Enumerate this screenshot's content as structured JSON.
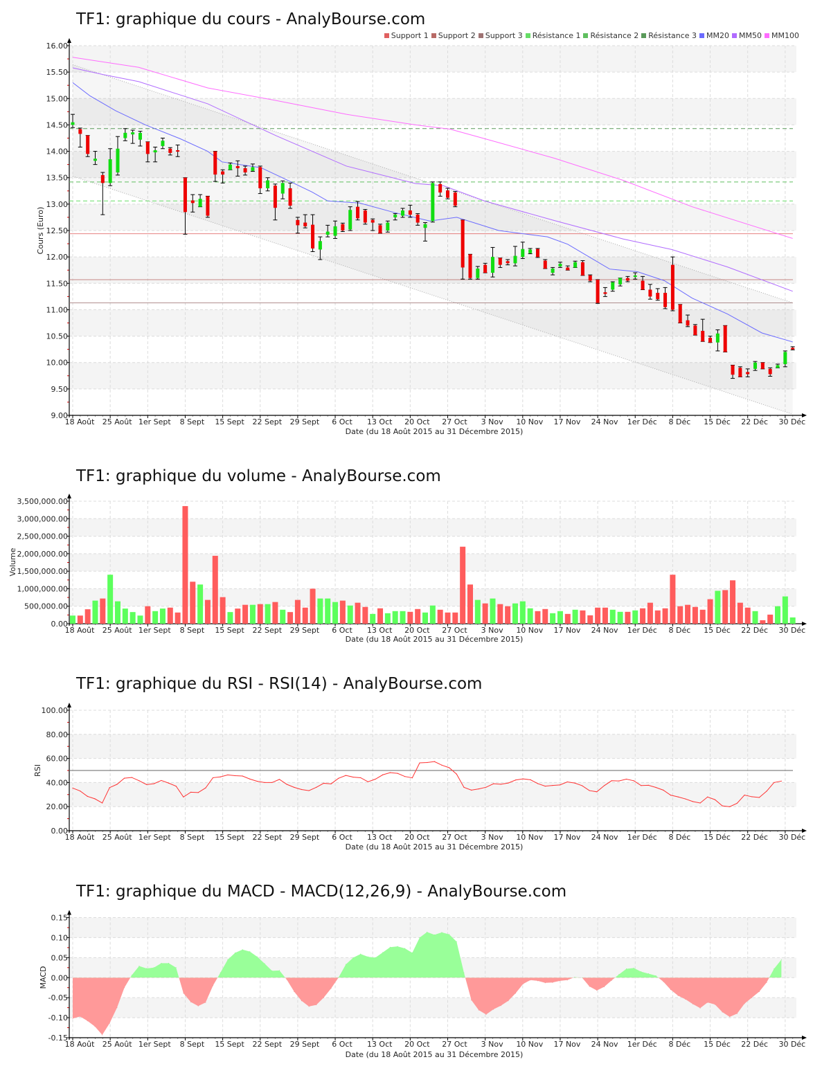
{
  "chart_data": [
    {
      "type": "candlestick",
      "title": "TF1: graphique du cours - AnalyBourse.com",
      "ylabel": "Cours (Euro)",
      "xlabel": "Date (du 18 Août 2015 au 31 Décembre 2015)",
      "ylim": [
        9,
        16
      ],
      "yticks": [
        "9.00",
        "9.50",
        "10.00",
        "10.50",
        "11.00",
        "11.50",
        "12.00",
        "12.50",
        "13.00",
        "13.50",
        "14.00",
        "14.50",
        "15.00",
        "15.50",
        "16.00"
      ],
      "xticks": [
        "18 Août",
        "25 Août",
        "1er Sept",
        "8 Sept",
        "15 Sept",
        "22 Sept",
        "29 Sept",
        "6 Oct",
        "13 Oct",
        "20 Oct",
        "27 Oct",
        "3 Nov",
        "10 Nov",
        "17 Nov",
        "24 Nov",
        "1er Déc",
        "8 Déc",
        "15 Déc",
        "22 Déc",
        "30 Déc"
      ],
      "xtick_every_days": 5,
      "legend": [
        {
          "label": "Support 1",
          "color": "#e06060"
        },
        {
          "label": "Support 2",
          "color": "#b86a66"
        },
        {
          "label": "Support 3",
          "color": "#9e7373"
        },
        {
          "label": "Résistance 1",
          "color": "#66dd66"
        },
        {
          "label": "Résistance 2",
          "color": "#5fbf5f"
        },
        {
          "label": "Résistance 3",
          "color": "#5a9a5a"
        },
        {
          "label": "MM20",
          "color": "#6b6bff"
        },
        {
          "label": "MM50",
          "color": "#b06bff"
        },
        {
          "label": "MM100",
          "color": "#ff6bff"
        }
      ],
      "ohlc_fields": [
        "open",
        "high",
        "low",
        "close"
      ],
      "ohlc": [
        [
          14.5,
          14.7,
          14.45,
          14.55
        ],
        [
          14.42,
          14.44,
          14.08,
          14.33
        ],
        [
          14.3,
          14.3,
          13.9,
          13.95
        ],
        [
          13.82,
          14.0,
          13.75,
          13.86
        ],
        [
          13.55,
          13.6,
          12.8,
          13.4
        ],
        [
          13.4,
          14.05,
          13.35,
          13.85
        ],
        [
          13.6,
          14.28,
          13.55,
          14.05
        ],
        [
          14.25,
          14.43,
          14.2,
          14.35
        ],
        [
          14.32,
          14.4,
          14.15,
          14.36
        ],
        [
          14.22,
          14.38,
          14.1,
          14.35
        ],
        [
          14.18,
          14.18,
          13.8,
          13.95
        ],
        [
          13.98,
          14.08,
          13.8,
          14.02
        ],
        [
          14.1,
          14.25,
          14.05,
          14.2
        ],
        [
          14.05,
          14.07,
          13.93,
          13.97
        ],
        [
          14.02,
          14.12,
          13.9,
          14.0
        ],
        [
          13.5,
          13.5,
          12.43,
          12.85
        ],
        [
          13.07,
          13.18,
          12.85,
          13.02
        ],
        [
          12.95,
          13.18,
          12.95,
          13.1
        ],
        [
          13.15,
          13.15,
          12.75,
          12.78
        ],
        [
          14.0,
          14.0,
          13.43,
          13.56
        ],
        [
          13.62,
          13.65,
          13.4,
          13.56
        ],
        [
          13.65,
          13.78,
          13.65,
          13.75
        ],
        [
          13.72,
          13.82,
          13.53,
          13.68
        ],
        [
          13.68,
          13.72,
          13.55,
          13.6
        ],
        [
          13.63,
          13.76,
          13.62,
          13.7
        ],
        [
          13.7,
          13.72,
          13.2,
          13.3
        ],
        [
          13.3,
          13.5,
          13.25,
          13.45
        ],
        [
          13.35,
          13.38,
          12.7,
          12.93
        ],
        [
          13.2,
          13.44,
          13.1,
          13.4
        ],
        [
          13.3,
          13.4,
          12.92,
          12.97
        ],
        [
          12.7,
          12.75,
          12.45,
          12.6
        ],
        [
          12.65,
          12.8,
          12.55,
          12.58
        ],
        [
          12.61,
          12.8,
          12.1,
          12.16
        ],
        [
          12.14,
          12.38,
          11.95,
          12.3
        ],
        [
          12.42,
          12.6,
          12.38,
          12.48
        ],
        [
          12.4,
          12.68,
          12.35,
          12.58
        ],
        [
          12.62,
          12.64,
          12.48,
          12.5
        ],
        [
          12.52,
          12.95,
          12.5,
          12.89
        ],
        [
          12.95,
          13.05,
          12.7,
          12.73
        ],
        [
          12.88,
          12.9,
          12.62,
          12.65
        ],
        [
          12.7,
          12.72,
          12.5,
          12.65
        ],
        [
          12.6,
          12.62,
          12.45,
          12.45
        ],
        [
          12.5,
          12.68,
          12.47,
          12.65
        ],
        [
          12.75,
          12.82,
          12.7,
          12.8
        ],
        [
          12.78,
          12.92,
          12.75,
          12.88
        ],
        [
          12.88,
          12.98,
          12.75,
          12.8
        ],
        [
          12.8,
          12.82,
          12.6,
          12.65
        ],
        [
          12.55,
          12.65,
          12.3,
          12.62
        ],
        [
          12.68,
          13.42,
          12.66,
          13.4
        ],
        [
          13.38,
          13.42,
          13.15,
          13.22
        ],
        [
          13.26,
          13.3,
          13.1,
          13.12
        ],
        [
          13.22,
          13.24,
          12.95,
          12.97
        ],
        [
          12.7,
          12.7,
          11.58,
          11.8
        ],
        [
          12.05,
          12.05,
          11.58,
          11.6
        ],
        [
          11.6,
          11.82,
          11.58,
          11.78
        ],
        [
          11.85,
          11.88,
          11.7,
          11.7
        ],
        [
          11.7,
          12.18,
          11.62,
          12.0
        ],
        [
          11.98,
          11.98,
          11.8,
          11.85
        ],
        [
          11.92,
          11.95,
          11.85,
          11.88
        ],
        [
          11.88,
          12.2,
          11.83,
          12.02
        ],
        [
          12.0,
          12.28,
          11.97,
          12.15
        ],
        [
          12.07,
          12.16,
          12.06,
          12.14
        ],
        [
          12.15,
          12.16,
          11.99,
          12.0
        ],
        [
          11.93,
          11.95,
          11.78,
          11.78
        ],
        [
          11.7,
          11.8,
          11.66,
          11.78
        ],
        [
          11.82,
          11.9,
          11.8,
          11.87
        ],
        [
          11.8,
          11.83,
          11.75,
          11.75
        ],
        [
          11.8,
          11.92,
          11.8,
          11.9
        ],
        [
          11.9,
          11.93,
          11.65,
          11.65
        ],
        [
          11.65,
          11.66,
          11.53,
          11.55
        ],
        [
          11.57,
          11.57,
          11.12,
          11.13
        ],
        [
          11.33,
          11.42,
          11.25,
          11.3
        ],
        [
          11.38,
          11.53,
          11.35,
          11.52
        ],
        [
          11.48,
          11.6,
          11.45,
          11.6
        ],
        [
          11.6,
          11.63,
          11.53,
          11.55
        ],
        [
          11.62,
          11.7,
          11.58,
          11.65
        ],
        [
          11.55,
          11.63,
          11.38,
          11.38
        ],
        [
          11.38,
          11.48,
          11.2,
          11.25
        ],
        [
          11.32,
          11.4,
          11.18,
          11.2
        ],
        [
          11.32,
          11.42,
          11.02,
          11.05
        ],
        [
          11.85,
          12.0,
          10.98,
          11.0
        ],
        [
          11.1,
          11.1,
          10.75,
          10.75
        ],
        [
          10.8,
          10.9,
          10.68,
          10.7
        ],
        [
          10.7,
          10.72,
          10.52,
          10.52
        ],
        [
          10.6,
          10.82,
          10.4,
          10.4
        ],
        [
          10.47,
          10.5,
          10.38,
          10.38
        ],
        [
          10.38,
          10.62,
          10.22,
          10.55
        ],
        [
          10.7,
          10.7,
          10.2,
          10.2
        ],
        [
          9.95,
          9.95,
          9.7,
          9.77
        ],
        [
          9.9,
          9.92,
          9.73,
          9.73
        ],
        [
          9.82,
          9.88,
          9.73,
          9.78
        ],
        [
          9.88,
          10.02,
          9.85,
          10.0
        ],
        [
          10.0,
          10.0,
          9.88,
          9.88
        ],
        [
          9.88,
          9.9,
          9.74,
          9.78
        ],
        [
          9.9,
          9.97,
          9.9,
          9.95
        ],
        [
          9.97,
          10.22,
          9.92,
          10.2
        ],
        [
          10.28,
          10.3,
          10.24,
          10.25
        ]
      ],
      "supports": [
        12.44,
        11.57,
        11.13
      ],
      "resistances": [
        13.06,
        13.42,
        14.43
      ],
      "moving_averages_day_value": {
        "MM20": [
          [
            0,
            15.3
          ],
          [
            2.3,
            15.05
          ],
          [
            5.7,
            14.77
          ],
          [
            9.7,
            14.5
          ],
          [
            14.3,
            14.24
          ],
          [
            18,
            14.0
          ],
          [
            19.9,
            13.8
          ],
          [
            25.1,
            13.69
          ],
          [
            27.2,
            13.55
          ],
          [
            31.9,
            13.23
          ],
          [
            34,
            13.06
          ],
          [
            38.3,
            13.02
          ],
          [
            42.9,
            12.84
          ],
          [
            47.6,
            12.68
          ],
          [
            51.2,
            12.75
          ],
          [
            56.8,
            12.5
          ],
          [
            63.3,
            12.38
          ],
          [
            66,
            12.24
          ],
          [
            71.6,
            11.77
          ],
          [
            75.3,
            11.72
          ],
          [
            78.9,
            11.55
          ],
          [
            82.6,
            11.22
          ],
          [
            87.3,
            10.92
          ],
          [
            91.9,
            10.56
          ],
          [
            96,
            10.39
          ]
        ],
        "MM50": [
          [
            0,
            15.58
          ],
          [
            4.2,
            15.45
          ],
          [
            8.8,
            15.32
          ],
          [
            18,
            14.9
          ],
          [
            27.2,
            14.29
          ],
          [
            36.5,
            13.72
          ],
          [
            45.7,
            13.39
          ],
          [
            49.4,
            13.35
          ],
          [
            54.9,
            13.06
          ],
          [
            64.2,
            12.69
          ],
          [
            73.4,
            12.34
          ],
          [
            79.9,
            12.14
          ],
          [
            87.3,
            11.81
          ],
          [
            96,
            11.35
          ]
        ],
        "MM100": [
          [
            0,
            15.78
          ],
          [
            8.8,
            15.59
          ],
          [
            18,
            15.2
          ],
          [
            27.2,
            14.96
          ],
          [
            36.5,
            14.7
          ],
          [
            45.7,
            14.5
          ],
          [
            50.3,
            14.42
          ],
          [
            54.9,
            14.24
          ],
          [
            64.2,
            13.87
          ],
          [
            73.4,
            13.45
          ],
          [
            82.6,
            12.95
          ],
          [
            96,
            12.35
          ]
        ]
      },
      "trend_channel": {
        "upper": [
          15.64,
          11.13
        ],
        "lower": [
          13.53,
          9.02
        ]
      },
      "colors": {
        "up": "#11dd11",
        "down": "#ee0000"
      }
    },
    {
      "type": "bar",
      "title": "TF1: graphique du volume - AnalyBourse.com",
      "ylabel": "Volume",
      "xlabel": "Date (du 18 Août 2015 au 31 Décembre 2015)",
      "ylim": [
        0,
        3500000
      ],
      "yticks": [
        "0.00",
        "500,000.00",
        "1,000,000.00",
        "1,500,000.00",
        "2,000,000.00",
        "2,500,000.00",
        "3,000,000.00",
        "3,500,000.00"
      ],
      "values": [
        233000,
        233000,
        413000,
        660000,
        720000,
        1400000,
        640000,
        433000,
        333000,
        233000,
        500000,
        360000,
        433000,
        460000,
        320000,
        3360000,
        1200000,
        1120000,
        680000,
        1940000,
        760000,
        333000,
        433000,
        540000,
        540000,
        560000,
        560000,
        620000,
        400000,
        333000,
        680000,
        460000,
        1000000,
        720000,
        720000,
        620000,
        660000,
        520000,
        600000,
        480000,
        280000,
        440000,
        300000,
        360000,
        360000,
        340000,
        420000,
        320000,
        520000,
        400000,
        320000,
        320000,
        2200000,
        1120000,
        680000,
        580000,
        720000,
        560000,
        500000,
        580000,
        640000,
        440000,
        360000,
        420000,
        300000,
        360000,
        280000,
        400000,
        380000,
        240000,
        460000,
        460000,
        400000,
        340000,
        340000,
        380000,
        440000,
        600000,
        380000,
        440000,
        1400000,
        500000,
        540000,
        480000,
        400000,
        700000,
        940000,
        960000,
        1240000,
        600000,
        460000,
        360000,
        100000,
        260000,
        500000,
        780000,
        180000
      ],
      "direction": "GRRGRGGGGGRGGRRRRGRRRGRRGRGRGRRRRGGGRGRRGRGGGRRGGRRRRRGRGRRGGGRRGGRGRRRRGGRGRRRRRRRRRRGRRRRGRRGGG",
      "colors": {
        "up": "#5cff5c",
        "down": "#ff5c5c"
      }
    },
    {
      "type": "line",
      "title": "TF1: graphique du RSI - RSI(14) - AnalyBourse.com",
      "ylabel": "RSI",
      "xlabel": "Date (du 18 Août 2015 au 31 Décembre 2015)",
      "ylim": [
        0,
        100
      ],
      "yticks": [
        "0.00",
        "20.00",
        "40.00",
        "60.00",
        "80.00",
        "100.00"
      ],
      "reference_line": 50,
      "values": [
        35.4,
        33,
        28.5,
        26.5,
        23,
        35.8,
        38.5,
        43.6,
        44.2,
        41.5,
        38.3,
        39,
        41.7,
        39.5,
        37,
        28,
        32,
        31.7,
        35.5,
        44,
        44.7,
        46.3,
        45.7,
        45.4,
        42.9,
        41,
        40,
        40,
        42.6,
        38.5,
        36,
        34.2,
        33.3,
        36,
        39.4,
        38.9,
        43.5,
        45.9,
        44.5,
        44,
        40.6,
        42.8,
        46.4,
        48.2,
        47.6,
        45,
        43.9,
        56.3,
        56.6,
        57.4,
        54.4,
        52.3,
        47,
        36,
        33.7,
        34.7,
        36.1,
        39,
        38.6,
        39.6,
        42.1,
        43,
        42.3,
        39.1,
        37,
        37.6,
        38,
        40.5,
        39.6,
        37.4,
        33.3,
        32.3,
        37.4,
        41.5,
        41.3,
        42.8,
        41.5,
        37.5,
        37.7,
        35.9,
        33.7,
        29.5,
        28.1,
        26.4,
        24.2,
        23,
        28,
        25.8,
        20.6,
        19.9,
        22.8,
        29.6,
        28.2,
        27.6,
        32.8,
        40,
        41.2
      ],
      "colors": {
        "line": "#ff3333",
        "reference": "#666666"
      }
    },
    {
      "type": "area",
      "title": "TF1: graphique du MACD - MACD(12,26,9) - AnalyBourse.com",
      "ylabel": "MACD",
      "xlabel": "Date (du 18 Août 2015 au 31 Décembre 2015)",
      "ylim": [
        -0.15,
        0.15
      ],
      "yticks": [
        "-0.15",
        "-0.10",
        "-0.05",
        "0.00",
        "0.05",
        "0.10",
        "0.15"
      ],
      "values": [
        -0.102,
        -0.097,
        -0.108,
        -0.122,
        -0.143,
        -0.114,
        -0.075,
        -0.025,
        0.006,
        0.029,
        0.023,
        0.025,
        0.036,
        0.036,
        0.025,
        -0.039,
        -0.061,
        -0.071,
        -0.062,
        -0.02,
        0.012,
        0.045,
        0.062,
        0.07,
        0.065,
        0.052,
        0.035,
        0.017,
        0.018,
        -0.005,
        -0.035,
        -0.058,
        -0.072,
        -0.068,
        -0.05,
        -0.027,
        0.0,
        0.033,
        0.05,
        0.059,
        0.052,
        0.05,
        0.063,
        0.076,
        0.078,
        0.073,
        0.062,
        0.1,
        0.114,
        0.107,
        0.113,
        0.108,
        0.09,
        0.012,
        -0.056,
        -0.081,
        -0.092,
        -0.079,
        -0.07,
        -0.058,
        -0.039,
        -0.016,
        -0.006,
        -0.008,
        -0.013,
        -0.012,
        -0.008,
        -0.006,
        0.001,
        0.0,
        -0.022,
        -0.032,
        -0.023,
        -0.007,
        0.008,
        0.022,
        0.024,
        0.015,
        0.01,
        0.005,
        -0.01,
        -0.03,
        -0.045,
        -0.054,
        -0.066,
        -0.076,
        -0.062,
        -0.067,
        -0.086,
        -0.098,
        -0.09,
        -0.065,
        -0.05,
        -0.035,
        -0.012,
        0.022,
        0.045
      ],
      "colors": {
        "positive": "#99ff99",
        "negative": "#ff9999"
      }
    }
  ]
}
